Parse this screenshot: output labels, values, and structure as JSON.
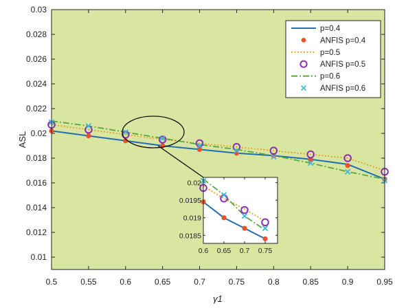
{
  "chart_data": {
    "type": "line",
    "title": "",
    "xlabel": "γ1",
    "ylabel": "ASL",
    "xlim": [
      0.5,
      0.95
    ],
    "ylim": [
      0.009,
      0.03
    ],
    "x": [
      0.5,
      0.55,
      0.6,
      0.65,
      0.7,
      0.75,
      0.8,
      0.85,
      0.9,
      0.95
    ],
    "x_ticks": [
      "0.5",
      "0.55",
      "0.6",
      "0.65",
      "0.7",
      "0.75",
      "0.8",
      "0.85",
      "0.9",
      "0.95"
    ],
    "y_ticks": [
      "0.01",
      "0.012",
      "0.014",
      "0.016",
      "0.018",
      "0.02",
      "0.022",
      "0.024",
      "0.026",
      "0.028",
      "0.03"
    ],
    "grid": false,
    "background_color": "#d9e6a2",
    "legend_position": "top-right",
    "series": [
      {
        "name": "p=0.4",
        "kind": "line",
        "style": "solid",
        "color": "#1f6fb4",
        "values": [
          0.0202,
          0.0198,
          0.0194,
          0.019,
          0.0187,
          0.0184,
          0.0182,
          0.0179,
          0.0175,
          0.0163
        ]
      },
      {
        "name": "ANFIS p=0.4",
        "kind": "marker",
        "marker": "dot",
        "color": "#e8532a",
        "values": [
          0.0202,
          0.0198,
          0.0194,
          0.019,
          0.0187,
          0.0184,
          0.0182,
          0.0179,
          0.0174,
          0.0163
        ]
      },
      {
        "name": "p=0.5",
        "kind": "line",
        "style": "dotted",
        "color": "#e8a020",
        "values": [
          0.0207,
          0.0203,
          0.0199,
          0.0195,
          0.0192,
          0.0189,
          0.0186,
          0.0183,
          0.018,
          0.017
        ]
      },
      {
        "name": "ANFIS p=0.5",
        "kind": "marker",
        "marker": "circle",
        "color": "#8a2fb5",
        "values": [
          0.0207,
          0.0203,
          0.0199,
          0.0195,
          0.0192,
          0.0189,
          0.0186,
          0.0183,
          0.018,
          0.0169
        ]
      },
      {
        "name": "p=0.6",
        "kind": "line",
        "style": "dashdot",
        "color": "#5aa83c",
        "values": [
          0.021,
          0.0206,
          0.0201,
          0.0196,
          0.0191,
          0.0187,
          0.0182,
          0.0176,
          0.0169,
          0.0163
        ]
      },
      {
        "name": "ANFIS p=0.6",
        "kind": "marker",
        "marker": "x",
        "color": "#3fb8d8",
        "values": [
          0.0209,
          0.0206,
          0.0201,
          0.0196,
          0.019,
          0.0186,
          0.0181,
          0.0176,
          0.0169,
          0.0162
        ]
      }
    ],
    "inset": {
      "xlim": [
        0.6,
        0.78
      ],
      "ylim": [
        0.01827,
        0.02015
      ],
      "x_ticks": [
        "0.6",
        "0.65",
        "0.7",
        "0.75"
      ],
      "y_ticks": [
        "0.0185",
        "0.019",
        "0.0195",
        "0.02"
      ],
      "x": [
        0.6,
        0.65,
        0.7,
        0.75
      ],
      "series": [
        {
          "name": "p=0.4",
          "kind": "line",
          "style": "solid",
          "color": "#1f6fb4",
          "values": [
            0.01945,
            0.019,
            0.0187,
            0.0184
          ]
        },
        {
          "name": "ANFIS p=0.4",
          "kind": "marker",
          "marker": "dot",
          "color": "#e8532a",
          "values": [
            0.01945,
            0.019,
            0.0187,
            0.0184
          ]
        },
        {
          "name": "p=0.5",
          "kind": "line",
          "style": "dotted",
          "color": "#e8a020",
          "values": [
            0.0199,
            0.01955,
            0.01925,
            0.0189
          ]
        },
        {
          "name": "ANFIS p=0.5",
          "kind": "marker",
          "marker": "circle",
          "color": "#8a2fb5",
          "values": [
            0.01985,
            0.01955,
            0.01922,
            0.01887
          ]
        },
        {
          "name": "p=0.6",
          "kind": "line",
          "style": "dashdot",
          "color": "#5aa83c",
          "values": [
            0.0201,
            0.01965,
            0.01905,
            0.01865
          ]
        },
        {
          "name": "ANFIS p=0.6",
          "kind": "marker",
          "marker": "x",
          "color": "#3fb8d8",
          "values": [
            0.02005,
            0.01965,
            0.01905,
            0.0187
          ]
        }
      ]
    }
  }
}
